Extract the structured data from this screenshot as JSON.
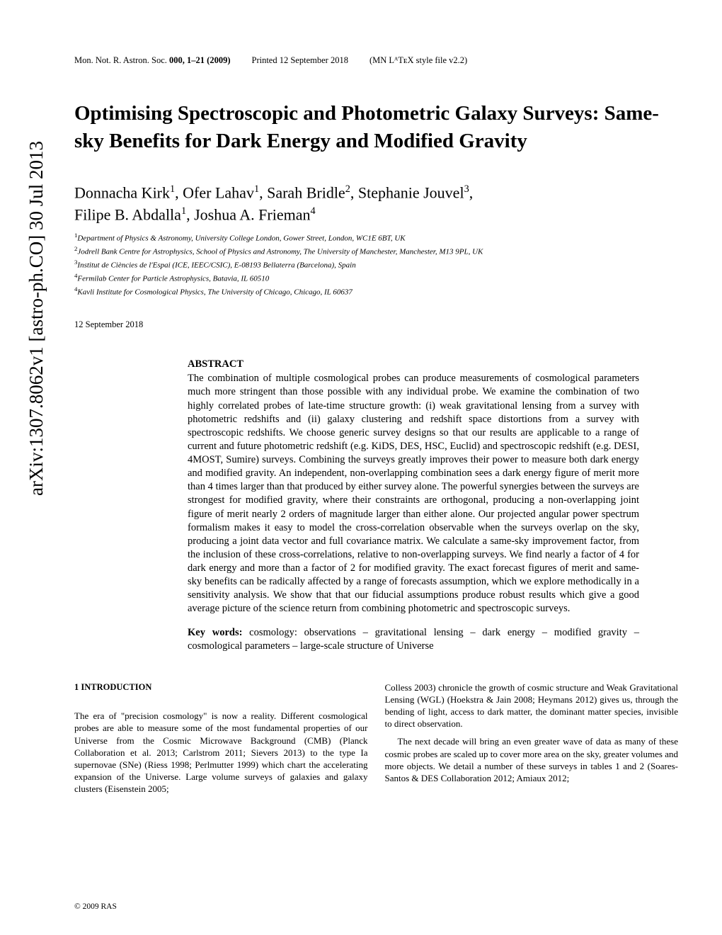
{
  "header": {
    "journal": "Mon. Not. R. Astron. Soc.",
    "volume_pages": "000, 1–21 (2009)",
    "printed": "Printed 12 September 2018",
    "style": "(MN LᴬTᴇX style file v2.2)"
  },
  "arxiv": "arXiv:1307.8062v1  [astro-ph.CO]  30 Jul 2013",
  "title": "Optimising Spectroscopic and Photometric Galaxy Surveys: Same-sky Benefits for Dark Energy and Modified Gravity",
  "authors_line1_a": "Donnacha Kirk",
  "authors_line1_b": ", Ofer Lahav",
  "authors_line1_c": ", Sarah Bridle",
  "authors_line1_d": ", Stephanie Jouvel",
  "authors_line1_e": ",",
  "authors_line2_a": "Filipe B. Abdalla",
  "authors_line2_b": ", Joshua A. Frieman",
  "affiliations": {
    "a1": "Department of Physics & Astronomy, University College London, Gower Street, London, WC1E 6BT, UK",
    "a2": "Jodrell Bank Centre for Astrophysics, School of Physics and Astronomy, The University of Manchester, Manchester, M13 9PL, UK",
    "a3": "Institut de Ciències de l'Espai (ICE, IEEC/CSIC), E-08193 Bellaterra (Barcelona), Spain",
    "a4a": "Fermilab Center for Particle Astrophysics, Batavia, IL 60510",
    "a4b": "Kavli Institute for Cosmological Physics, The University of Chicago, Chicago, IL 60637"
  },
  "date": "12 September 2018",
  "abstract_heading": "ABSTRACT",
  "abstract_text": "The combination of multiple cosmological probes can produce measurements of cosmological parameters much more stringent than those possible with any individual probe. We examine the combination of two highly correlated probes of late-time structure growth: (i) weak gravitational lensing from a survey with photometric redshifts and (ii) galaxy clustering and redshift space distortions from a survey with spectroscopic redshifts. We choose generic survey designs so that our results are applicable to a range of current and future photometric redshift (e.g. KiDS, DES, HSC, Euclid) and spectroscopic redshift (e.g. DESI, 4MOST, Sumire) surveys. Combining the surveys greatly improves their power to measure both dark energy and modified gravity. An independent, non-overlapping combination sees a dark energy figure of merit more than 4 times larger than that produced by either survey alone. The powerful synergies between the surveys are strongest for modified gravity, where their constraints are orthogonal, producing a non-overlapping joint figure of merit nearly 2 orders of magnitude larger than either alone. Our projected angular power spectrum formalism makes it easy to model the cross-correlation observable when the surveys overlap on the sky, producing a joint data vector and full covariance matrix. We calculate a same-sky improvement factor, from the inclusion of these cross-correlations, relative to non-overlapping surveys. We find nearly a factor of 4 for dark energy and more than a factor of 2 for modified gravity. The exact forecast figures of merit and same-sky benefits can be radically affected by a range of forecasts assumption, which we explore methodically in a sensitivity analysis. We show that that our fiducial assumptions produce robust results which give a good average picture of the science return from combining photometric and spectroscopic surveys.",
  "keywords_label": "Key words:",
  "keywords_text": " cosmology: observations – gravitational lensing – dark energy – modified gravity – cosmological parameters – large-scale structure of Universe",
  "section1_heading": "1   INTRODUCTION",
  "col1_p1": "The era of \"precision cosmology\" is now a reality. Different cosmological probes are able to measure some of the most fundamental properties of our Universe from the Cosmic Microwave Background (CMB) (Planck Collaboration et al. 2013; Carlstrom 2011; Sievers 2013) to the type Ia supernovae (SNe) (Riess 1998; Perlmutter 1999) which chart the accelerating expansion of the Universe. Large volume surveys of galaxies and galaxy clusters (Eisenstein 2005;",
  "col2_p1": "Colless 2003) chronicle the growth of cosmic structure and Weak Gravitational Lensing (WGL) (Hoekstra & Jain 2008; Heymans 2012) gives us, through the bending of light, access to dark matter, the dominant matter species, invisible to direct observation.",
  "col2_p2": "The next decade will bring an even greater wave of data as many of these cosmic probes are scaled up to cover more area on the sky, greater volumes and more objects. We detail a number of these surveys in tables 1 and 2 (Soares-Santos & DES Collaboration 2012; Amiaux 2012;",
  "copyright": "© 2009 RAS"
}
